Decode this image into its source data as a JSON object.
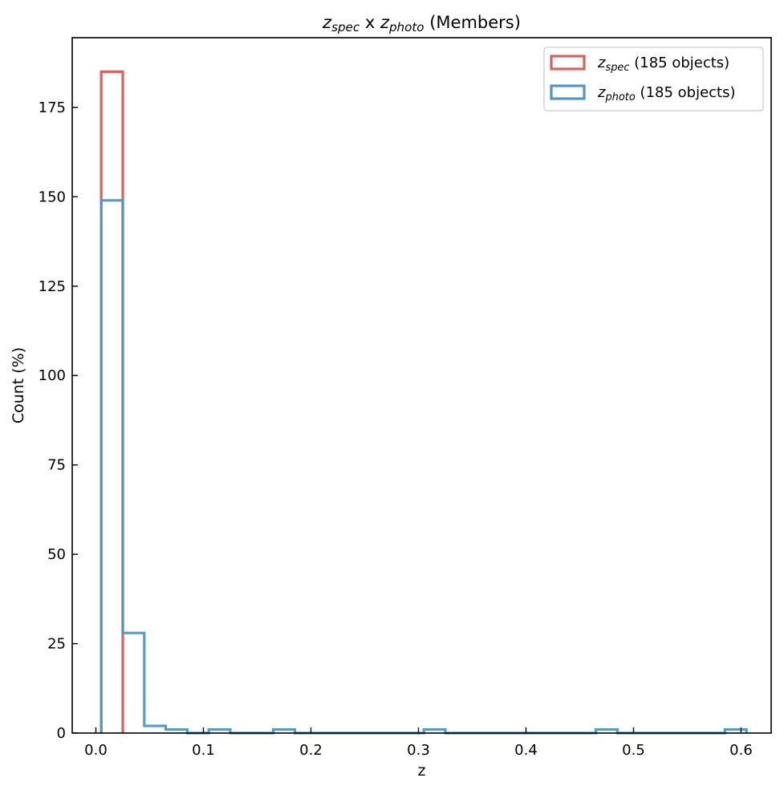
{
  "chart_data": {
    "type": "histogram",
    "title": {
      "parts": [
        {
          "text": "z",
          "italic": true
        },
        {
          "text": "spec",
          "italic": true,
          "sub": true
        },
        {
          "text": " x "
        },
        {
          "text": "z",
          "italic": true
        },
        {
          "text": "photo",
          "italic": true,
          "sub": true
        },
        {
          "text": " (Members)"
        }
      ]
    },
    "xlabel": "z",
    "ylabel": "Count (%)",
    "xlim": [
      -0.022,
      0.628
    ],
    "ylim": [
      0,
      194.5
    ],
    "xticks": [
      0.0,
      0.1,
      0.2,
      0.3,
      0.4,
      0.5,
      0.6
    ],
    "xtick_labels": [
      "0.0",
      "0.1",
      "0.2",
      "0.3",
      "0.4",
      "0.5",
      "0.6"
    ],
    "yticks": [
      0,
      25,
      50,
      75,
      100,
      125,
      150,
      175
    ],
    "ytick_labels": [
      "0",
      "25",
      "50",
      "75",
      "100",
      "125",
      "150",
      "175"
    ],
    "legend_position": "top-right",
    "tick_direction": "in",
    "grid": false,
    "series": [
      {
        "name": "z_spec (185 objects)",
        "legend_parts": [
          {
            "text": "z",
            "italic": true
          },
          {
            "text": "spec",
            "italic": true,
            "sub": true
          },
          {
            "text": " (185 objects)"
          }
        ],
        "color": "#d9605b",
        "bin_edges": [
          0.005,
          0.025
        ],
        "counts": [
          185
        ]
      },
      {
        "name": "z_photo (185 objects)",
        "legend_parts": [
          {
            "text": "z",
            "italic": true
          },
          {
            "text": "photo",
            "italic": true,
            "sub": true
          },
          {
            "text": " (185 objects)"
          }
        ],
        "color": "#5096c3",
        "bin_edges": [
          0.005,
          0.025,
          0.045,
          0.065,
          0.085,
          0.105,
          0.125,
          0.145,
          0.165,
          0.185,
          0.205,
          0.225,
          0.245,
          0.265,
          0.285,
          0.305,
          0.325,
          0.345,
          0.365,
          0.385,
          0.405,
          0.425,
          0.445,
          0.465,
          0.485,
          0.505,
          0.525,
          0.545,
          0.565,
          0.585,
          0.605
        ],
        "counts": [
          149,
          28,
          2,
          1,
          0,
          1,
          0,
          0,
          1,
          0,
          0,
          0,
          0,
          0,
          0,
          1,
          0,
          0,
          0,
          0,
          0,
          0,
          0,
          1,
          0,
          0,
          0,
          0,
          0,
          1
        ]
      }
    ]
  }
}
